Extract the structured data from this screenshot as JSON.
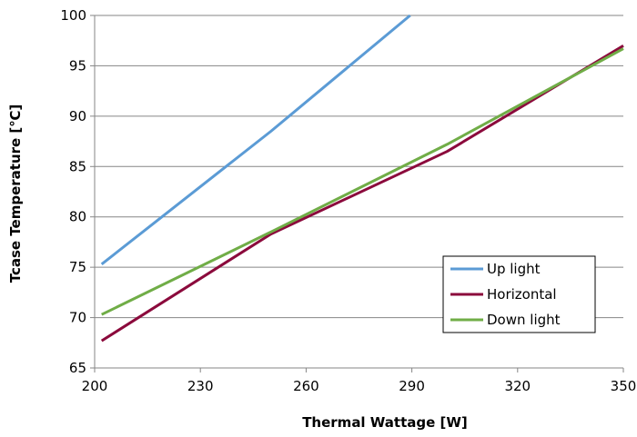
{
  "chart_data": {
    "type": "line",
    "xlabel": "Thermal Wattage [W]",
    "ylabel": "Tcase Temperature [℃]",
    "xlim": [
      200,
      350
    ],
    "ylim": [
      65,
      100
    ],
    "xticks": [
      200,
      230,
      260,
      290,
      320,
      350
    ],
    "yticks": [
      65,
      70,
      75,
      80,
      85,
      90,
      95,
      100
    ],
    "grid": "horizontal",
    "legend_position": "bottom-right",
    "series": [
      {
        "name": "Up light",
        "color": "#5B9BD5",
        "points": [
          [
            202,
            75.3
          ],
          [
            250,
            88.5
          ],
          [
            289.5,
            100
          ]
        ]
      },
      {
        "name": "Horizontal",
        "color": "#8B0A3C",
        "points": [
          [
            202,
            67.7
          ],
          [
            250,
            78.3
          ],
          [
            300,
            86.5
          ],
          [
            350,
            97
          ]
        ]
      },
      {
        "name": "Down light",
        "color": "#70AD47",
        "points": [
          [
            202,
            70.3
          ],
          [
            250,
            78.5
          ],
          [
            300,
            87.2
          ],
          [
            350,
            96.7
          ]
        ]
      }
    ]
  }
}
